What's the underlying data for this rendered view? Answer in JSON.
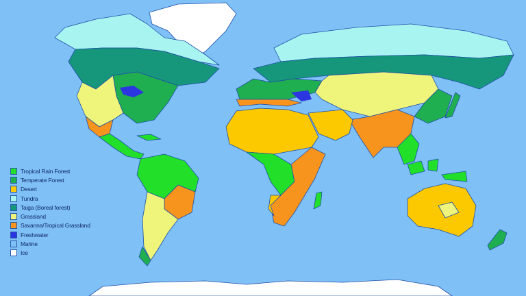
{
  "background_color": "#7fc0f7",
  "legend": {
    "items": [
      {
        "label": "Tropical Rain Forest",
        "color": "#22e02a"
      },
      {
        "label": "Temperate Forest",
        "color": "#1fae50"
      },
      {
        "label": "Desert",
        "color": "#fcc800"
      },
      {
        "label": "Tundra",
        "color": "#a8f4f0"
      },
      {
        "label": "Taiga (Boreal forest)",
        "color": "#16967a"
      },
      {
        "label": "Grassland",
        "color": "#eef57a"
      },
      {
        "label": "Savanna/Tropical Grassland",
        "color": "#f7941d"
      },
      {
        "label": "Freshwater",
        "color": "#2b35e0"
      },
      {
        "label": "Marine",
        "color": "#7fc0f7"
      },
      {
        "label": "Ice",
        "color": "#ffffff"
      }
    ]
  }
}
